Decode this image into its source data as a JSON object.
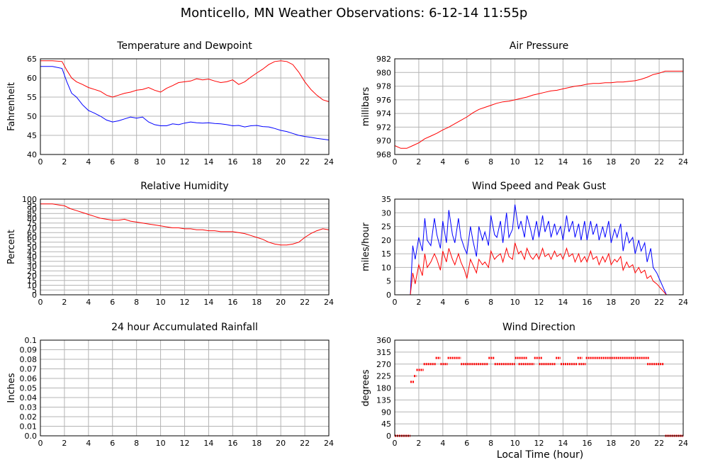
{
  "page": {
    "title": "Monticello, MN Weather Observations: 6-12-14 11:55p",
    "xlabel": "Local Time (hour)"
  },
  "chart_data": [
    {
      "type": "line",
      "title": "Temperature and Dewpoint",
      "xlabel": "",
      "ylabel": "Fahrenheit",
      "xlim": [
        0,
        24
      ],
      "ylim": [
        40,
        65
      ],
      "xticks": [
        0,
        2,
        4,
        6,
        8,
        10,
        12,
        14,
        16,
        18,
        20,
        22,
        24
      ],
      "yticks": [
        40,
        45,
        50,
        55,
        60,
        65
      ],
      "grid": true,
      "series": [
        {
          "color": "#ff0000",
          "x": [
            0,
            1,
            1.8,
            2.2,
            2.6,
            3,
            3.5,
            4,
            4.5,
            5,
            5.5,
            6,
            6.5,
            7,
            7.5,
            8,
            8.5,
            9,
            9.5,
            10,
            10.5,
            11,
            11.5,
            12,
            12.5,
            13,
            13.5,
            14,
            14.5,
            15,
            15.5,
            16,
            16.5,
            17,
            17.5,
            18,
            18.5,
            19,
            19.5,
            20,
            20.5,
            21,
            21.5,
            22,
            22.5,
            23,
            23.5,
            24
          ],
          "y": [
            64.5,
            64.5,
            64.3,
            62,
            60,
            59,
            58.3,
            57.5,
            57,
            56.5,
            55.5,
            55,
            55.5,
            56,
            56.3,
            56.8,
            57,
            57.5,
            56.8,
            56.3,
            57.3,
            58,
            58.8,
            59,
            59.2,
            59.8,
            59.5,
            59.7,
            59.2,
            58.8,
            59,
            59.5,
            58.3,
            59,
            60.2,
            61.3,
            62.3,
            63.5,
            64.3,
            64.5,
            64.3,
            63.5,
            61.5,
            59,
            57,
            55.5,
            54.3,
            53.8
          ]
        },
        {
          "color": "#0000ff",
          "x": [
            0,
            1,
            1.8,
            2.2,
            2.6,
            3,
            3.5,
            4,
            4.5,
            5,
            5.5,
            6,
            6.5,
            7,
            7.5,
            8,
            8.5,
            9,
            9.5,
            10,
            10.5,
            11,
            11.5,
            12,
            12.5,
            13,
            13.5,
            14,
            14.5,
            15,
            15.5,
            16,
            16.5,
            17,
            17.5,
            18,
            18.5,
            19,
            19.5,
            20,
            20.5,
            21,
            21.5,
            22,
            22.5,
            23,
            23.5,
            24
          ],
          "y": [
            63,
            63,
            62.5,
            59,
            56,
            55,
            53,
            51.5,
            50.8,
            50,
            49,
            48.5,
            48.8,
            49.3,
            49.8,
            49.5,
            49.8,
            48.5,
            47.8,
            47.5,
            47.5,
            48,
            47.8,
            48.2,
            48.5,
            48.3,
            48.2,
            48.3,
            48.1,
            48,
            47.8,
            47.5,
            47.6,
            47.2,
            47.5,
            47.6,
            47.3,
            47.2,
            46.8,
            46.3,
            46,
            45.5,
            45,
            44.7,
            44.5,
            44.2,
            44,
            43.8
          ]
        }
      ]
    },
    {
      "type": "line",
      "title": "Air Pressure",
      "xlabel": "",
      "ylabel": "millibars",
      "xlim": [
        0,
        24
      ],
      "ylim": [
        968,
        982
      ],
      "xticks": [
        0,
        2,
        4,
        6,
        8,
        10,
        12,
        14,
        16,
        18,
        20,
        22,
        24
      ],
      "yticks": [
        968,
        970,
        972,
        974,
        976,
        978,
        980,
        982
      ],
      "grid": true,
      "series": [
        {
          "color": "#ff0000",
          "x": [
            0,
            0.5,
            1,
            1.5,
            2,
            2.5,
            3,
            3.5,
            4,
            4.5,
            5,
            5.5,
            6,
            6.5,
            7,
            7.5,
            8,
            8.5,
            9,
            9.5,
            10,
            10.5,
            11,
            11.5,
            12,
            12.5,
            13,
            13.5,
            14,
            14.5,
            15,
            15.5,
            16,
            16.5,
            17,
            17.5,
            18,
            18.5,
            19,
            19.5,
            20,
            20.5,
            21,
            21.5,
            22,
            22.5,
            23,
            23.5,
            24
          ],
          "y": [
            969.3,
            968.9,
            968.9,
            969.3,
            969.7,
            970.3,
            970.7,
            971.1,
            971.6,
            972,
            972.5,
            973,
            973.5,
            974.1,
            974.6,
            974.9,
            975.2,
            975.5,
            975.7,
            975.8,
            976,
            976.2,
            976.4,
            976.7,
            976.9,
            977.1,
            977.3,
            977.4,
            977.6,
            977.8,
            978,
            978.1,
            978.3,
            978.4,
            978.4,
            978.5,
            978.5,
            978.6,
            978.6,
            978.7,
            978.8,
            979,
            979.3,
            979.7,
            979.9,
            980.2,
            980.2,
            980.2,
            980.2
          ]
        }
      ]
    },
    {
      "type": "line",
      "title": "Relative Humidity",
      "xlabel": "",
      "ylabel": "Percent",
      "xlim": [
        0,
        24
      ],
      "ylim": [
        0,
        100
      ],
      "xticks": [
        0,
        2,
        4,
        6,
        8,
        10,
        12,
        14,
        16,
        18,
        20,
        22,
        24
      ],
      "yticks": [
        0,
        5,
        10,
        15,
        20,
        25,
        30,
        35,
        40,
        45,
        50,
        55,
        60,
        65,
        70,
        75,
        80,
        85,
        90,
        95,
        100
      ],
      "grid": true,
      "series": [
        {
          "color": "#ff0000",
          "x": [
            0,
            0.5,
            1,
            1.5,
            2,
            2.5,
            3,
            3.5,
            4,
            4.5,
            5,
            5.5,
            6,
            6.5,
            7,
            7.5,
            8,
            8.5,
            9,
            9.5,
            10,
            10.5,
            11,
            11.5,
            12,
            12.5,
            13,
            13.5,
            14,
            14.5,
            15,
            15.5,
            16,
            16.5,
            17,
            17.5,
            18,
            18.5,
            19,
            19.5,
            20,
            20.5,
            21,
            21.5,
            22,
            22.5,
            23,
            23.5,
            24
          ],
          "y": [
            95,
            95,
            95,
            94,
            93,
            90,
            88,
            86,
            84,
            82,
            80,
            79,
            78,
            78,
            79,
            77,
            76,
            75,
            74,
            73,
            72,
            71,
            70,
            70,
            69,
            69,
            68,
            68,
            67,
            67,
            66,
            66,
            66,
            65,
            64,
            62,
            60,
            58,
            55,
            53,
            52,
            52,
            53,
            55,
            60,
            64,
            67,
            69,
            68
          ]
        }
      ]
    },
    {
      "type": "line",
      "title": "Wind Speed and Peak Gust",
      "xlabel": "",
      "ylabel": "miles/hour",
      "xlim": [
        0,
        24
      ],
      "ylim": [
        0,
        35
      ],
      "xticks": [
        0,
        2,
        4,
        6,
        8,
        10,
        12,
        14,
        16,
        18,
        20,
        22,
        24
      ],
      "yticks": [
        0,
        5,
        10,
        15,
        20,
        25,
        30,
        35
      ],
      "grid": true,
      "series": [
        {
          "color": "#0000ff",
          "x": [
            0,
            1,
            1.15,
            1.3,
            1.5,
            1.7,
            2,
            2.3,
            2.5,
            2.7,
            3,
            3.3,
            3.5,
            3.8,
            4,
            4.3,
            4.5,
            4.8,
            5,
            5.3,
            5.5,
            5.8,
            6,
            6.3,
            6.5,
            6.8,
            7,
            7.3,
            7.5,
            7.8,
            8,
            8.3,
            8.5,
            8.8,
            9,
            9.3,
            9.5,
            9.8,
            10,
            10.3,
            10.5,
            10.8,
            11,
            11.3,
            11.5,
            11.8,
            12,
            12.3,
            12.5,
            12.8,
            13,
            13.3,
            13.5,
            13.8,
            14,
            14.3,
            14.5,
            14.8,
            15,
            15.3,
            15.5,
            15.8,
            16,
            16.3,
            16.5,
            16.8,
            17,
            17.3,
            17.5,
            17.8,
            18,
            18.3,
            18.5,
            18.8,
            19,
            19.3,
            19.5,
            19.8,
            20,
            20.3,
            20.5,
            20.8,
            21,
            21.3,
            21.5,
            21.8,
            22,
            22.2,
            22.4,
            22.6,
            24
          ],
          "y": [
            0,
            0,
            0,
            0,
            18,
            13,
            21,
            16,
            28,
            20,
            18,
            28,
            22,
            17,
            27,
            19,
            31,
            22,
            19,
            28,
            21,
            17,
            15,
            25,
            20,
            14,
            25,
            20,
            23,
            18,
            29,
            22,
            21,
            27,
            19,
            30,
            21,
            24,
            33,
            24,
            27,
            21,
            29,
            24,
            20,
            27,
            21,
            29,
            23,
            27,
            21,
            26,
            22,
            25,
            20,
            29,
            23,
            27,
            21,
            26,
            20,
            27,
            20,
            27,
            22,
            26,
            20,
            25,
            21,
            27,
            19,
            24,
            21,
            26,
            16,
            23,
            19,
            21,
            15,
            20,
            16,
            19,
            12,
            17,
            10,
            8,
            6,
            4,
            2,
            0,
            0
          ]
        },
        {
          "color": "#ff0000",
          "x": [
            0,
            1,
            1.15,
            1.3,
            1.5,
            1.7,
            2,
            2.3,
            2.5,
            2.7,
            3,
            3.3,
            3.5,
            3.8,
            4,
            4.3,
            4.5,
            4.8,
            5,
            5.3,
            5.5,
            5.8,
            6,
            6.3,
            6.5,
            6.8,
            7,
            7.3,
            7.5,
            7.8,
            8,
            8.3,
            8.5,
            8.8,
            9,
            9.3,
            9.5,
            9.8,
            10,
            10.3,
            10.5,
            10.8,
            11,
            11.3,
            11.5,
            11.8,
            12,
            12.3,
            12.5,
            12.8,
            13,
            13.3,
            13.5,
            13.8,
            14,
            14.3,
            14.5,
            14.8,
            15,
            15.3,
            15.5,
            15.8,
            16,
            16.3,
            16.5,
            16.8,
            17,
            17.3,
            17.5,
            17.8,
            18,
            18.3,
            18.5,
            18.8,
            19,
            19.3,
            19.5,
            19.8,
            20,
            20.3,
            20.5,
            20.8,
            21,
            21.3,
            21.5,
            21.8,
            22,
            22.2,
            22.4,
            22.6,
            24
          ],
          "y": [
            0,
            0,
            0,
            0,
            8,
            4,
            11,
            7,
            15,
            10,
            12,
            15,
            13,
            9,
            16,
            12,
            17,
            13,
            11,
            15,
            12,
            9,
            6,
            13,
            11,
            8,
            13,
            11,
            12,
            10,
            16,
            13,
            14,
            15,
            12,
            17,
            14,
            13,
            19,
            15,
            16,
            13,
            17,
            14,
            13,
            15,
            13,
            17,
            14,
            15,
            13,
            16,
            14,
            15,
            13,
            17,
            14,
            15,
            12,
            15,
            12,
            14,
            12,
            16,
            13,
            14,
            11,
            14,
            12,
            15,
            11,
            13,
            12,
            14,
            9,
            12,
            10,
            11,
            8,
            10,
            8,
            9,
            6,
            7,
            5,
            4,
            3,
            2,
            1,
            0,
            0
          ]
        }
      ]
    },
    {
      "type": "line",
      "title": "24 hour Accumulated Rainfall",
      "xlabel": "",
      "ylabel": "Inches",
      "xlim": [
        0,
        24
      ],
      "ylim": [
        0,
        0.1
      ],
      "xticks": [
        0,
        2,
        4,
        6,
        8,
        10,
        12,
        14,
        16,
        18,
        20,
        22,
        24
      ],
      "yticks": [
        0.0,
        0.01,
        0.02,
        0.03,
        0.04,
        0.05,
        0.06,
        0.07,
        0.08,
        0.09,
        0.1
      ],
      "ytick_labels": [
        "0.0",
        "0.01",
        "0.02",
        "0.03",
        "0.04",
        "0.05",
        "0.06",
        "0.07",
        "0.08",
        "0.09",
        "0.1"
      ],
      "grid": true,
      "series": [
        {
          "color": "#ff0000",
          "x": [
            0,
            24
          ],
          "y": [
            0,
            0
          ]
        }
      ]
    },
    {
      "type": "scatter",
      "title": "Wind Direction",
      "xlabel": "",
      "ylabel": "degrees",
      "xlim": [
        0,
        24
      ],
      "ylim": [
        0,
        360
      ],
      "xticks": [
        0,
        2,
        4,
        6,
        8,
        10,
        12,
        14,
        16,
        18,
        20,
        22,
        24
      ],
      "yticks": [
        0,
        45,
        90,
        135,
        180,
        225,
        270,
        315,
        360
      ],
      "grid": true,
      "series": [
        {
          "color": "#ff0000",
          "segments": [
            {
              "x_start": 0.0,
              "x_end": 1.3,
              "y": 0
            },
            {
              "x_start": 1.3,
              "x_end": 1.6,
              "y": 203
            },
            {
              "x_start": 1.6,
              "x_end": 1.8,
              "y": 225
            },
            {
              "x_start": 1.8,
              "x_end": 2.4,
              "y": 248
            },
            {
              "x_start": 2.4,
              "x_end": 3.4,
              "y": 270
            },
            {
              "x_start": 3.4,
              "x_end": 3.8,
              "y": 293
            },
            {
              "x_start": 3.8,
              "x_end": 4.4,
              "y": 270
            },
            {
              "x_start": 4.4,
              "x_end": 5.5,
              "y": 293
            },
            {
              "x_start": 5.5,
              "x_end": 7.8,
              "y": 270
            },
            {
              "x_start": 7.8,
              "x_end": 8.3,
              "y": 293
            },
            {
              "x_start": 8.3,
              "x_end": 10.0,
              "y": 270
            },
            {
              "x_start": 10.0,
              "x_end": 11.0,
              "y": 293
            },
            {
              "x_start": 10.3,
              "x_end": 11.6,
              "y": 270
            },
            {
              "x_start": 11.6,
              "x_end": 12.3,
              "y": 293
            },
            {
              "x_start": 12.0,
              "x_end": 13.4,
              "y": 270
            },
            {
              "x_start": 13.4,
              "x_end": 13.8,
              "y": 293
            },
            {
              "x_start": 13.8,
              "x_end": 15.2,
              "y": 270
            },
            {
              "x_start": 15.2,
              "x_end": 15.6,
              "y": 293
            },
            {
              "x_start": 15.3,
              "x_end": 15.9,
              "y": 270
            },
            {
              "x_start": 15.9,
              "x_end": 21.2,
              "y": 293
            },
            {
              "x_start": 21.0,
              "x_end": 22.4,
              "y": 270
            },
            {
              "x_start": 22.5,
              "x_end": 24.0,
              "y": 0
            }
          ]
        }
      ]
    }
  ]
}
